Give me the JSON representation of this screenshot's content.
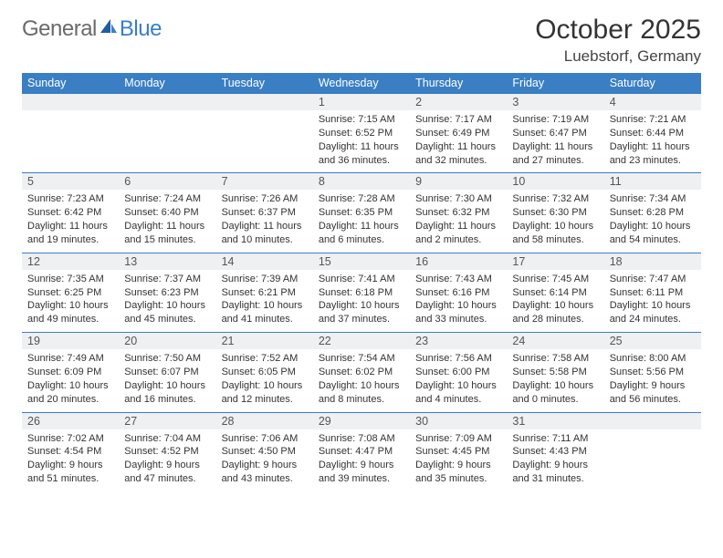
{
  "brand": {
    "general": "General",
    "blue": "Blue"
  },
  "header": {
    "month_title": "October 2025",
    "location": "Luebstorf, Germany"
  },
  "colors": {
    "header_bg": "#3a7fc4",
    "daynum_bg": "#eef0f2",
    "border": "#3a7fc4",
    "text": "#333333",
    "logo_gray": "#6a6a6a",
    "logo_blue": "#3a7fc4"
  },
  "weekdays": [
    "Sunday",
    "Monday",
    "Tuesday",
    "Wednesday",
    "Thursday",
    "Friday",
    "Saturday"
  ],
  "weeks": [
    [
      null,
      null,
      null,
      {
        "n": "1",
        "sr": "7:15 AM",
        "ss": "6:52 PM",
        "dl": "11 hours and 36 minutes."
      },
      {
        "n": "2",
        "sr": "7:17 AM",
        "ss": "6:49 PM",
        "dl": "11 hours and 32 minutes."
      },
      {
        "n": "3",
        "sr": "7:19 AM",
        "ss": "6:47 PM",
        "dl": "11 hours and 27 minutes."
      },
      {
        "n": "4",
        "sr": "7:21 AM",
        "ss": "6:44 PM",
        "dl": "11 hours and 23 minutes."
      }
    ],
    [
      {
        "n": "5",
        "sr": "7:23 AM",
        "ss": "6:42 PM",
        "dl": "11 hours and 19 minutes."
      },
      {
        "n": "6",
        "sr": "7:24 AM",
        "ss": "6:40 PM",
        "dl": "11 hours and 15 minutes."
      },
      {
        "n": "7",
        "sr": "7:26 AM",
        "ss": "6:37 PM",
        "dl": "11 hours and 10 minutes."
      },
      {
        "n": "8",
        "sr": "7:28 AM",
        "ss": "6:35 PM",
        "dl": "11 hours and 6 minutes."
      },
      {
        "n": "9",
        "sr": "7:30 AM",
        "ss": "6:32 PM",
        "dl": "11 hours and 2 minutes."
      },
      {
        "n": "10",
        "sr": "7:32 AM",
        "ss": "6:30 PM",
        "dl": "10 hours and 58 minutes."
      },
      {
        "n": "11",
        "sr": "7:34 AM",
        "ss": "6:28 PM",
        "dl": "10 hours and 54 minutes."
      }
    ],
    [
      {
        "n": "12",
        "sr": "7:35 AM",
        "ss": "6:25 PM",
        "dl": "10 hours and 49 minutes."
      },
      {
        "n": "13",
        "sr": "7:37 AM",
        "ss": "6:23 PM",
        "dl": "10 hours and 45 minutes."
      },
      {
        "n": "14",
        "sr": "7:39 AM",
        "ss": "6:21 PM",
        "dl": "10 hours and 41 minutes."
      },
      {
        "n": "15",
        "sr": "7:41 AM",
        "ss": "6:18 PM",
        "dl": "10 hours and 37 minutes."
      },
      {
        "n": "16",
        "sr": "7:43 AM",
        "ss": "6:16 PM",
        "dl": "10 hours and 33 minutes."
      },
      {
        "n": "17",
        "sr": "7:45 AM",
        "ss": "6:14 PM",
        "dl": "10 hours and 28 minutes."
      },
      {
        "n": "18",
        "sr": "7:47 AM",
        "ss": "6:11 PM",
        "dl": "10 hours and 24 minutes."
      }
    ],
    [
      {
        "n": "19",
        "sr": "7:49 AM",
        "ss": "6:09 PM",
        "dl": "10 hours and 20 minutes."
      },
      {
        "n": "20",
        "sr": "7:50 AM",
        "ss": "6:07 PM",
        "dl": "10 hours and 16 minutes."
      },
      {
        "n": "21",
        "sr": "7:52 AM",
        "ss": "6:05 PM",
        "dl": "10 hours and 12 minutes."
      },
      {
        "n": "22",
        "sr": "7:54 AM",
        "ss": "6:02 PM",
        "dl": "10 hours and 8 minutes."
      },
      {
        "n": "23",
        "sr": "7:56 AM",
        "ss": "6:00 PM",
        "dl": "10 hours and 4 minutes."
      },
      {
        "n": "24",
        "sr": "7:58 AM",
        "ss": "5:58 PM",
        "dl": "10 hours and 0 minutes."
      },
      {
        "n": "25",
        "sr": "8:00 AM",
        "ss": "5:56 PM",
        "dl": "9 hours and 56 minutes."
      }
    ],
    [
      {
        "n": "26",
        "sr": "7:02 AM",
        "ss": "4:54 PM",
        "dl": "9 hours and 51 minutes."
      },
      {
        "n": "27",
        "sr": "7:04 AM",
        "ss": "4:52 PM",
        "dl": "9 hours and 47 minutes."
      },
      {
        "n": "28",
        "sr": "7:06 AM",
        "ss": "4:50 PM",
        "dl": "9 hours and 43 minutes."
      },
      {
        "n": "29",
        "sr": "7:08 AM",
        "ss": "4:47 PM",
        "dl": "9 hours and 39 minutes."
      },
      {
        "n": "30",
        "sr": "7:09 AM",
        "ss": "4:45 PM",
        "dl": "9 hours and 35 minutes."
      },
      {
        "n": "31",
        "sr": "7:11 AM",
        "ss": "4:43 PM",
        "dl": "9 hours and 31 minutes."
      },
      null
    ]
  ],
  "labels": {
    "sunrise": "Sunrise: ",
    "sunset": "Sunset: ",
    "daylight": "Daylight: "
  }
}
